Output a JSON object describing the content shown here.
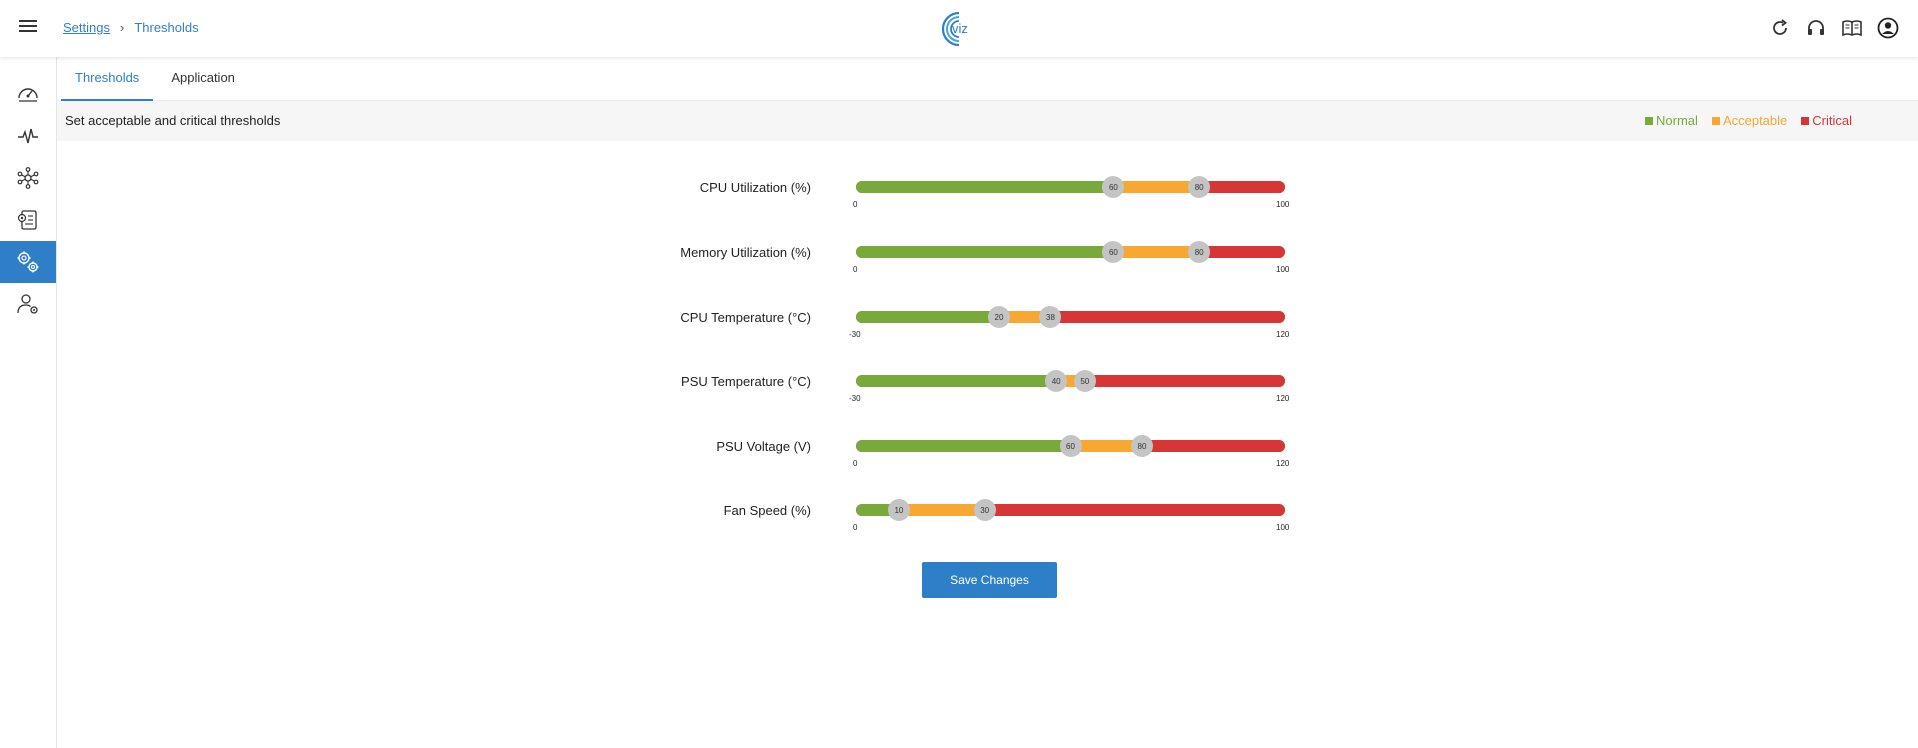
{
  "breadcrumb": {
    "parent": "Settings",
    "separator": "›",
    "current": "Thresholds"
  },
  "logo": {
    "text": "viz",
    "color": "#2f7fc8"
  },
  "header_icons": [
    "refresh-icon",
    "headset-icon",
    "book-icon",
    "account-icon"
  ],
  "sidebar": {
    "items": [
      {
        "name": "dashboard-icon",
        "active": false
      },
      {
        "name": "pulse-icon",
        "active": false
      },
      {
        "name": "network-icon",
        "active": false
      },
      {
        "name": "report-icon",
        "active": false
      },
      {
        "name": "settings-gears-icon",
        "active": true
      },
      {
        "name": "user-settings-icon",
        "active": false
      }
    ]
  },
  "tabs": [
    {
      "label": "Thresholds",
      "active": true
    },
    {
      "label": "Application",
      "active": false
    }
  ],
  "subheader": {
    "title": "Set acceptable and critical thresholds",
    "legend": [
      {
        "label": "Normal",
        "color": "#7aa93b"
      },
      {
        "label": "Acceptable",
        "color": "#f7a833"
      },
      {
        "label": "Critical",
        "color": "#d63636"
      }
    ]
  },
  "thresholds": [
    {
      "label": "CPU Utilization (%)",
      "min": 0,
      "max": 100,
      "acceptable": 60,
      "critical": 80,
      "min_label": "0",
      "max_label": "100",
      "acceptable_label": "60",
      "critical_label": "80"
    },
    {
      "label": "Memory Utilization (%)",
      "min": 0,
      "max": 100,
      "acceptable": 60,
      "critical": 80,
      "min_label": "0",
      "max_label": "100",
      "acceptable_label": "60",
      "critical_label": "80"
    },
    {
      "label": "CPU Temperature (°C)",
      "min": -30,
      "max": 120,
      "acceptable": 20,
      "critical": 38,
      "min_label": "-30",
      "max_label": "120",
      "acceptable_label": "20",
      "critical_label": "38"
    },
    {
      "label": "PSU Temperature (°C)",
      "min": -30,
      "max": 120,
      "acceptable": 40,
      "critical": 50,
      "min_label": "-30",
      "max_label": "120",
      "acceptable_label": "40",
      "critical_label": "50"
    },
    {
      "label": "PSU Voltage (V)",
      "min": 0,
      "max": 120,
      "acceptable": 60,
      "critical": 80,
      "min_label": "0",
      "max_label": "120",
      "acceptable_label": "60",
      "critical_label": "80"
    },
    {
      "label": "Fan Speed (%)",
      "min": 0,
      "max": 100,
      "acceptable": 10,
      "critical": 30,
      "min_label": "0",
      "max_label": "100",
      "acceptable_label": "10",
      "critical_label": "30"
    }
  ],
  "save_label": "Save Changes"
}
